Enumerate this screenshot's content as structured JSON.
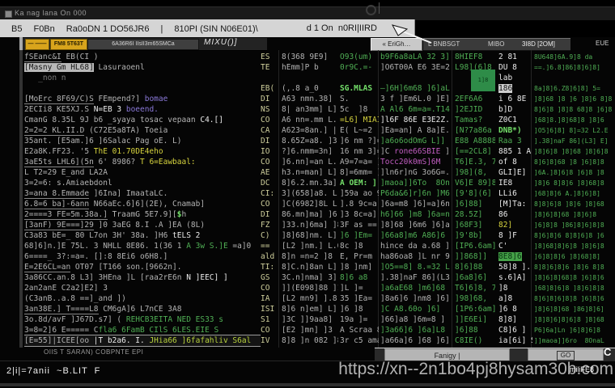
{
  "window": {
    "title": "Ka nag lana On 000"
  },
  "menu": {
    "items": [
      "B5",
      "F0Bn",
      "Ra0oDN 1 DO56JR6",
      "|",
      "810PI (SIN N06E01)\\"
    ],
    "right": "d 1 On  n0RI|IIRD"
  },
  "toolbar": {
    "btn1": "— ——",
    "btn2": "FM8 5T63T",
    "btn3": "6A36R6I IIsII3m65SMCa",
    "brand": "MIXU()]"
  },
  "headers": {
    "registers_tab": "« EriGh…",
    "seg1": "L BNBSGT",
    "seg2": "MIBO",
    "seg3": "3I8D [2OM]",
    "right": "EUE"
  },
  "selection_label": "1]8",
  "disasm_rows": [
    [
      {
        "t": "fSEanc&I",
        "c": "u"
      },
      {
        "t": " EB(CI )",
        "c": "g"
      }
    ],
    [
      {
        "t": "[Masny Gm HL68]",
        "c": "chip"
      },
      {
        "t": " Lasuraoenl",
        "c": "g"
      }
    ],
    [
      {
        "t": "   _non n",
        "c": "d"
      }
    ],
    [],
    [
      {
        "t": "[MoErc 8F69/C)S",
        "c": "u"
      },
      {
        "t": " FEmpend?] ",
        "c": "g"
      },
      {
        "t": "bomae",
        "c": "p"
      }
    ],
    [
      {
        "t": "2ECIi8 KE5XJ.S ",
        "c": "g"
      },
      {
        "t": "N=EB 3 ",
        "c": "w"
      },
      {
        "t": "boeend.",
        "c": "p"
      }
    ],
    [
      {
        "t": "CmanG 8.35L 9J b6 _syaya tosac vepaan ",
        "c": "g"
      },
      {
        "t": "C4.[]",
        "c": "w"
      }
    ],
    [
      {
        "t": "2=2=2 KL.II.D",
        "c": "u"
      },
      {
        "t": " (C72E5a8TA) Toeia",
        "c": "g"
      }
    ],
    [
      {
        "t": "35ant. [E5am.]6 ]6Salac Pag oE. L)",
        "c": "g"
      }
    ],
    [
      {
        "t": "E2a8K.FF23. '5 ",
        "c": "g"
      },
      {
        "t": "ThE 01.70DE4eho",
        "c": "y"
      }
    ],
    [
      {
        "t": "3aE5ts LHL6](5n",
        "c": "u"
      },
      {
        "t": " 6' 8986? ",
        "c": "g"
      },
      {
        "t": "T 6=Eawbaal:",
        "c": "y"
      }
    ],
    [
      {
        "t": "L T2=29 E_and LA2A",
        "c": "g"
      }
    ],
    [
      {
        "t": "3=2=6: s.Amiaebdonl",
        "c": "g"
      }
    ],
    [
      {
        "t": "3=ana 8.Emmade",
        "c": "u"
      },
      {
        "t": " ]6Ina] ImaataLC.",
        "c": "g"
      }
    ],
    [
      {
        "t": "6.8=6 ba]-6ann",
        "c": "u"
      },
      {
        "t": " N66aEc.6]6](2E), Cnamab]",
        "c": "g"
      }
    ],
    [
      {
        "t": "2====3 FE=5m.38a.]",
        "c": "u"
      },
      {
        "t": " TraamG 5E7.9][",
        "c": "g"
      },
      {
        "t": "$",
        "c": "grb"
      },
      {
        "t": "h",
        "c": "g"
      }
    ],
    [
      {
        "t": "[3anF) 9E===]29",
        "c": "u"
      },
      {
        "t": " ]0 3aEG 8.I .A ]EA (8L)",
        "c": "g"
      }
    ],
    [
      {
        "t": "C3a83 bE=_ 80 L7on 3H' 38a. ]H6 ",
        "c": "g"
      },
      {
        "t": "tELS 2",
        "c": "w"
      }
    ],
    [
      {
        "t": "68]6]n.]E 75L. 3 NHLL 8E86. 1(36 1 ",
        "c": "g"
      },
      {
        "t": "A 3w S.]E",
        "c": "gr"
      },
      {
        "t": " =a]0",
        "c": "g"
      }
    ],
    [
      {
        "t": "6====_ 3?:=a=. []:8 8Ei6 o6H8.]",
        "c": "g"
      }
    ],
    [
      {
        "t": "E=2E6CL=an",
        "c": "u"
      },
      {
        "t": " OT07 [T166 son.[9662n].",
        "c": "g"
      }
    ],
    [
      {
        "t": "3a86CC.an.8 L3] 3HEna ]L [raa2rE6n ",
        "c": "g"
      },
      {
        "t": "N ]EEC] ]",
        "c": "w"
      }
    ],
    [
      {
        "t": "2an2anE C2a2]E2] 3",
        "c": "g"
      }
    ],
    [
      {
        "t": "(C3anB..a.8 ==]_and ])",
        "c": "g"
      }
    ],
    [
      {
        "t": "3an38E.] T====L8",
        "c": "u"
      },
      {
        "t": " CM6gA]6 L7nCE 3A8",
        "c": "g"
      }
    ],
    [
      {
        "t": "3o.8d/avF ]J67D.s7] ( ",
        "c": "g"
      },
      {
        "t": "REHCB3EITA NED ES33 s",
        "c": "gr"
      }
    ],
    [
      {
        "t": "3=8=2]6 E===== C",
        "c": "g"
      },
      {
        "t": "fla6 6FamB CIlS 6LES.EIE S",
        "c": "gr"
      }
    ],
    {
      "hl": true,
      "s": [
        {
          "t": "[E=55]|ICEE[oo ",
          "c": "g"
        },
        {
          "t": "|T b2a6. I. ",
          "c": "w"
        },
        {
          "t": "JHia66 ]6fafahliv S6al",
          "c": "ygr"
        }
      ]
    }
  ],
  "letter_rows": [
    "ES",
    "TE",
    "",
    "EB(",
    "DI",
    "NS",
    "CO",
    "CA",
    "DI",
    "IO",
    "CO",
    "AE",
    "DC",
    "CI:",
    "CO",
    "DI",
    "FZ",
    "C)",
    "==",
    "ald",
    "TI:",
    "GS",
    "CO",
    "IA",
    "ISI",
    "S1",
    "CO",
    "IV"
  ],
  "val_rows": [
    "8(368 9E9]",
    "hEmm]P b",
    "",
    "(,.8 a_0",
    "A63 nmn.38]",
    "8| an3mm] L]",
    "A6 nn=.mm L.(",
    "A623=8an.] |",
    "8.65Z=a8. ]3|",
    "?]6.nmm=3n]",
    "]6.nn]=an L.]",
    "h3.n=man] L]",
    "8]6.2.mn.3a]",
    "3](658]a8. L]",
    "]C(6982]8L L]",
    "86.mn]ma] ]6]",
    "]33.n]6ma] ]8",
    "]8]68]nm. L]",
    "[L2 ]nm.] L.6",
    "8]n =n=2 ]8",
    "8]C.n]8an L]",
    "3C.n]nma] 3]",
    "]](E098]88 ]1",
    "[L2 mn9] ].8",
    "8]6 n]em] L]",
    "]3C ]]9aa8]",
    "[E2 ]mn] ]3",
    "8]8 ]n 082 ]8"
  ],
  "mid_rows": [
    [
      {
        "t": "O93(um)",
        "c": "gr"
      }
    ],
    [
      {
        "t": "0r9C.=-",
        "c": "gr"
      }
    ],
    "",
    [
      {
        "t": "SG.MLAS",
        "c": "grb"
      }
    ],
    "S.",
    "5c  ]8",
    [
      {
        "t": "=L6] MIAI",
        "c": "y"
      }
    ],
    "E( L~=2",
    "]6 nm ?]=",
    "16 nm 3]==",
    "A9=7=a= ]",
    "8]=6mm= ]",
    [
      {
        "t": "A OEM: ]",
        "c": "grb"
      }
    ],
    "]59a ao 98",
    "].8 9c=a 8",
    "]3 8c=a] ]",
    "3F as ==",
    [
      {
        "t": "]6 ]Em=",
        "c": "gr"
      }
    ],
    "8c ]8",
    "E, Pr=m",
    "]8 ]nm]",
    [
      {
        "t": "8]6 a8",
        "c": "gr"
      }
    ],
    "]L ]=",
    "35 ]Ea=",
    "]6 ]8",
    "19a ]=",
    "A Scraa 8",
    "3r c5 ama"
  ],
  "cmt_rows": [
    "b9F6a8aLA 32 3]6L]",
    [
      {
        "t": "]O6T00A E6 3E=2=01]",
        "c": "g"
      }
    ],
    "",
    "—]6H]6m68 ]6]aL",
    [
      {
        "t": "3 f ]Em6L.0 ]E]",
        "c": "g"
      }
    ],
    "A Al6 6m=a=.T14=",
    [
      {
        "t": "]l6F 86E E3E2Z.L]L",
        "c": "w"
      }
    ],
    [
      {
        "t": "]Ea=an] A 8a]E.= =",
        "c": "g"
      }
    ],
    "]a6o6odOmG L]]",
    [
      {
        "t": "]C ",
        "c": "g"
      },
      {
        "t": "rone66SBIE",
        "c": "m"
      },
      {
        "t": " ]0a",
        "c": "g"
      }
    ],
    [
      {
        "t": "Tocc20k0mS]6M",
        "c": "m"
      }
    ],
    [
      {
        "t": "]ln6r]nG 3o6G=.]La] a]",
        "c": "g"
      }
    ],
    "]maoa]]6To  8OnaL]",
    "P6da&6]r]6n ]M6]",
    [
      {
        "t": "]6a=m8 ]6]=a]6n ]E]",
        "c": "g"
      }
    ],
    "h6]66 ]m8 ]6a=n ]L]",
    [
      {
        "t": "]8]68 ]6m6 ]6]a8",
        "c": "g"
      }
    ],
    "]66a8]m6 A86]6 ]",
    [
      {
        "t": "hince da a.68 ]E3]",
        "c": "g"
      }
    ],
    [
      {
        "t": "ha86oa8 ]L nr 9O3",
        "c": "g"
      }
    ],
    "]O5==8] 8.=32 L2.E.]",
    [
      {
        "t": "].38]naF 86](L3] E]6]]",
        "c": "g"
      }
    ],
    "]a6aE68 ]m6]68 L]",
    [
      {
        "t": "]8a6]6 ]nm8 ]6]",
        "c": "g"
      }
    ],
    "]C A8.60o ]6]",
    [
      {
        "t": "]66]a8 ]6m=8 ]",
        "c": "g"
      }
    ],
    "]3a66]6 ]6a]L8",
    [
      {
        "t": "]a66a]6 ]68 ]6]aL]",
        "c": "g"
      }
    ]
  ],
  "maddr_rows": [
    "8HIEF8",
    "L98](6]8",
    "",
    "",
    "2EF6A6",
    "]2EJID",
    "Tamas?",
    "[N?7a86a",
    "E88 A8888",
    "[==2CL8]",
    "T6]E.3, 7",
    "]98](8,",
    "V6]E 89]8",
    "[9'8](6]",
    "]6]88]",
    "28.5Z]",
    "]68F3]",
    "]9'8b]",
    "[IP6.6am]",
    "]]868]]",
    "8]6]88",
    "]6a8]6]",
    "T6]6]8, 7",
    "]98]68,",
    "[1P6:6am]",
    "]]E6Ei]",
    "]6]88",
    "C8IE()"
  ],
  "mval_rows": [
    "2 81",
    "DU 8",
    "lab",
    [
      {
        "t": "186",
        "c": "chipg"
      }
    ],
    "i 6 8E",
    "b]D",
    "Z0C1",
    [
      {
        "t": "DNB*)",
        "c": "grb"
      }
    ],
    [
      {
        "t": "Raa 3",
        "c": "gr"
      }
    ],
    "885 1 A",
    "of 8",
    "GLI]E]",
    "IE8",
    "LLi6",
    "[M]Ta:",
    "86",
    [
      {
        "t": "82]",
        "c": "y"
      }
    ],
    "8 ]F",
    "C'",
    [
      {
        "t": "8E8]6",
        "c": "chipgr"
      }
    ],
    "58]8 ].",
    "s.6]A]",
    "]8",
    "a]8",
    "]6 8",
    "8]8]",
    "C8]6 ]",
    "ia[6i] S0M"
  ],
  "sdump_rows": [
    "8U648]6A.9]8 da",
    "==.]6.8]86]8]6]8]",
    "",
    "8a]8]6.Z8]6]8] 5=",
    "]8]68 ]8 ]6 ]8]6 8]8",
    "8]6]8 ]8]8 68]8 ]6]8",
    "]68]8.]8]68]8 ]8]6",
    "]O5]6]8] 8]=32 L2.E",
    "].38]naF 86](L3] E]",
    "]8]6]8 ]8]68 ]8]6]8",
    "8]6]8]68 ]8 ]6]8]8",
    "]6A.]8]6]8 ]6]8 ]8",
    "]8]6 8]8]6 ]8]68]8",
    "]68]8]6 A.]8]6]8]",
    "8]8]6]8 ]8]6 ]8]68",
    "]8]6]8]68 ]8]6]8",
    "]6]8]8 ]86]8]6]8]8",
    "8]6]8]6 8]8]6]8 ]6",
    "]8]68]8]6]8 ]8]6]8",
    "]6]8]8]6 ]8]68]8]",
    "8]8]6]8]6 ]8]6 8]8",
    "]8]6]8]68]8 ]6]8]6",
    "]68]8]6]8 ]8]6]8]8",
    "8]6]8]6]8]8 ]6]8]6",
    "]8]6]8]68 ]86]8]6]",
    "]8]8]6]8]6]8 ]8]68",
    "P6]6a]Ln ]6]8]6]8",
    "]]maoa]]6ro  8OnaL"
  ],
  "statusbar": {
    "left": "OIlS T SARAN) COBPNTE EPI",
    "scroll_text": "Fanigy |",
    "go": "GO",
    "corner": "C"
  },
  "taskbar": {
    "start": "2|i|=7anii  ~B.LIT  F",
    "overlay": "miliFE8"
  },
  "watermark": {
    "url": "https://xn--2n1bo4pj8hysam30b.com"
  },
  "colors": {
    "amber": "#d8a41c",
    "green": "#4fae54",
    "bright_green": "#74e06a",
    "yellow": "#d6d33e",
    "purple": "#8a79d8",
    "magenta": "#c25ec2",
    "gray_text": "#b3b3b3",
    "menu_bg": "#d5d5d5",
    "selection_green": "#2e8c48"
  }
}
